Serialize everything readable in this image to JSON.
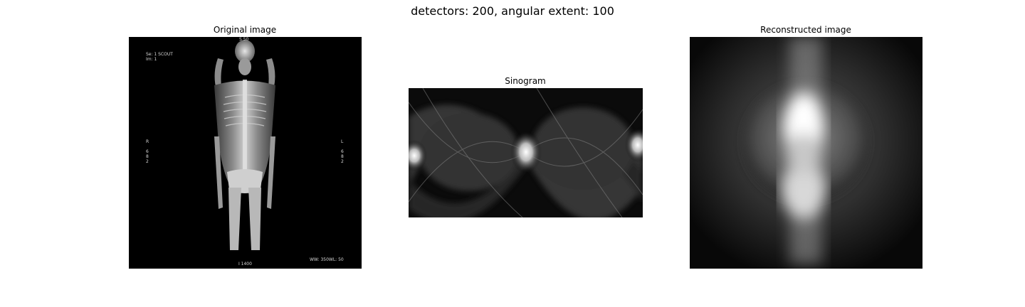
{
  "figure": {
    "title": "detectors: 200, angular extent: 100"
  },
  "panels": {
    "original": {
      "title": "Original image",
      "overlay": {
        "top_center": "S 50",
        "top_left_line1": "Se: 1 SCOUT",
        "top_left_line2": "Im: 1",
        "right_side_letter": "R",
        "right_side_digits": [
          "6",
          "8",
          "2"
        ],
        "left_side_letter": "L",
        "left_side_digits": [
          "6",
          "8",
          "2"
        ],
        "bottom_center": "I 1400",
        "bottom_right": "WW: 350WL: 50"
      }
    },
    "sinogram": {
      "title": "Sinogram"
    },
    "reconstructed": {
      "title": "Reconstructed image"
    }
  }
}
